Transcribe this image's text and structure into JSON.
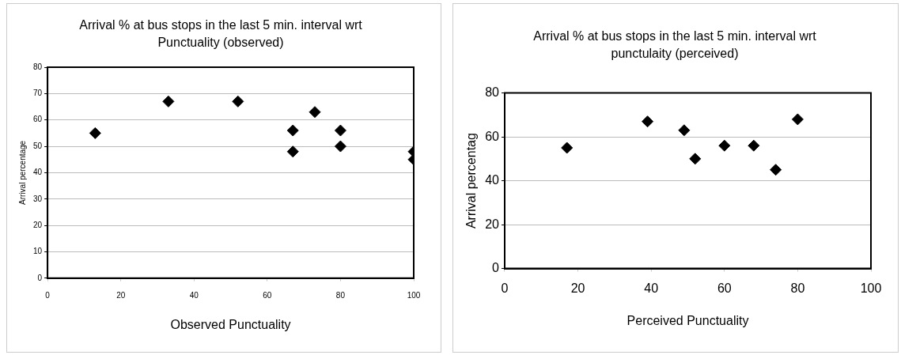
{
  "chart_data": [
    {
      "type": "scatter",
      "title": "Arrival % at bus stops in the last 5 min. interval wrt Punctuality (observed)",
      "xlabel": "Observed Punctuality",
      "ylabel": "Arrival percentage",
      "x": [
        13,
        33,
        52,
        67,
        67,
        73,
        80,
        80,
        100,
        100
      ],
      "values": [
        55,
        67,
        67,
        56,
        48,
        63,
        56,
        50,
        48,
        45
      ],
      "color": "#000000",
      "marker": "diamond",
      "xlim": [
        0,
        100
      ],
      "xticks": [
        0,
        20,
        40,
        60,
        80,
        100
      ],
      "ylim": [
        0,
        80
      ],
      "yticks": [
        0,
        10,
        20,
        30,
        40,
        50,
        60,
        70,
        80
      ],
      "grid": "y",
      "legend": false
    },
    {
      "type": "scatter",
      "title": "Arrival % at bus stops in the last 5 min. interval wrt punctulaity (perceived)",
      "xlabel": "Perceived Punctuality",
      "ylabel": "Arrival percentag",
      "x": [
        17,
        39,
        49,
        52,
        60,
        68,
        74,
        80
      ],
      "values": [
        55,
        67,
        63,
        50,
        56,
        56,
        45,
        68
      ],
      "color": "#000000",
      "marker": "diamond",
      "xlim": [
        0,
        100
      ],
      "xticks": [
        0,
        20,
        40,
        60,
        80,
        100
      ],
      "ylim": [
        0,
        80
      ],
      "yticks": [
        0,
        20,
        40,
        60,
        80
      ],
      "grid": "y",
      "legend": false
    }
  ]
}
